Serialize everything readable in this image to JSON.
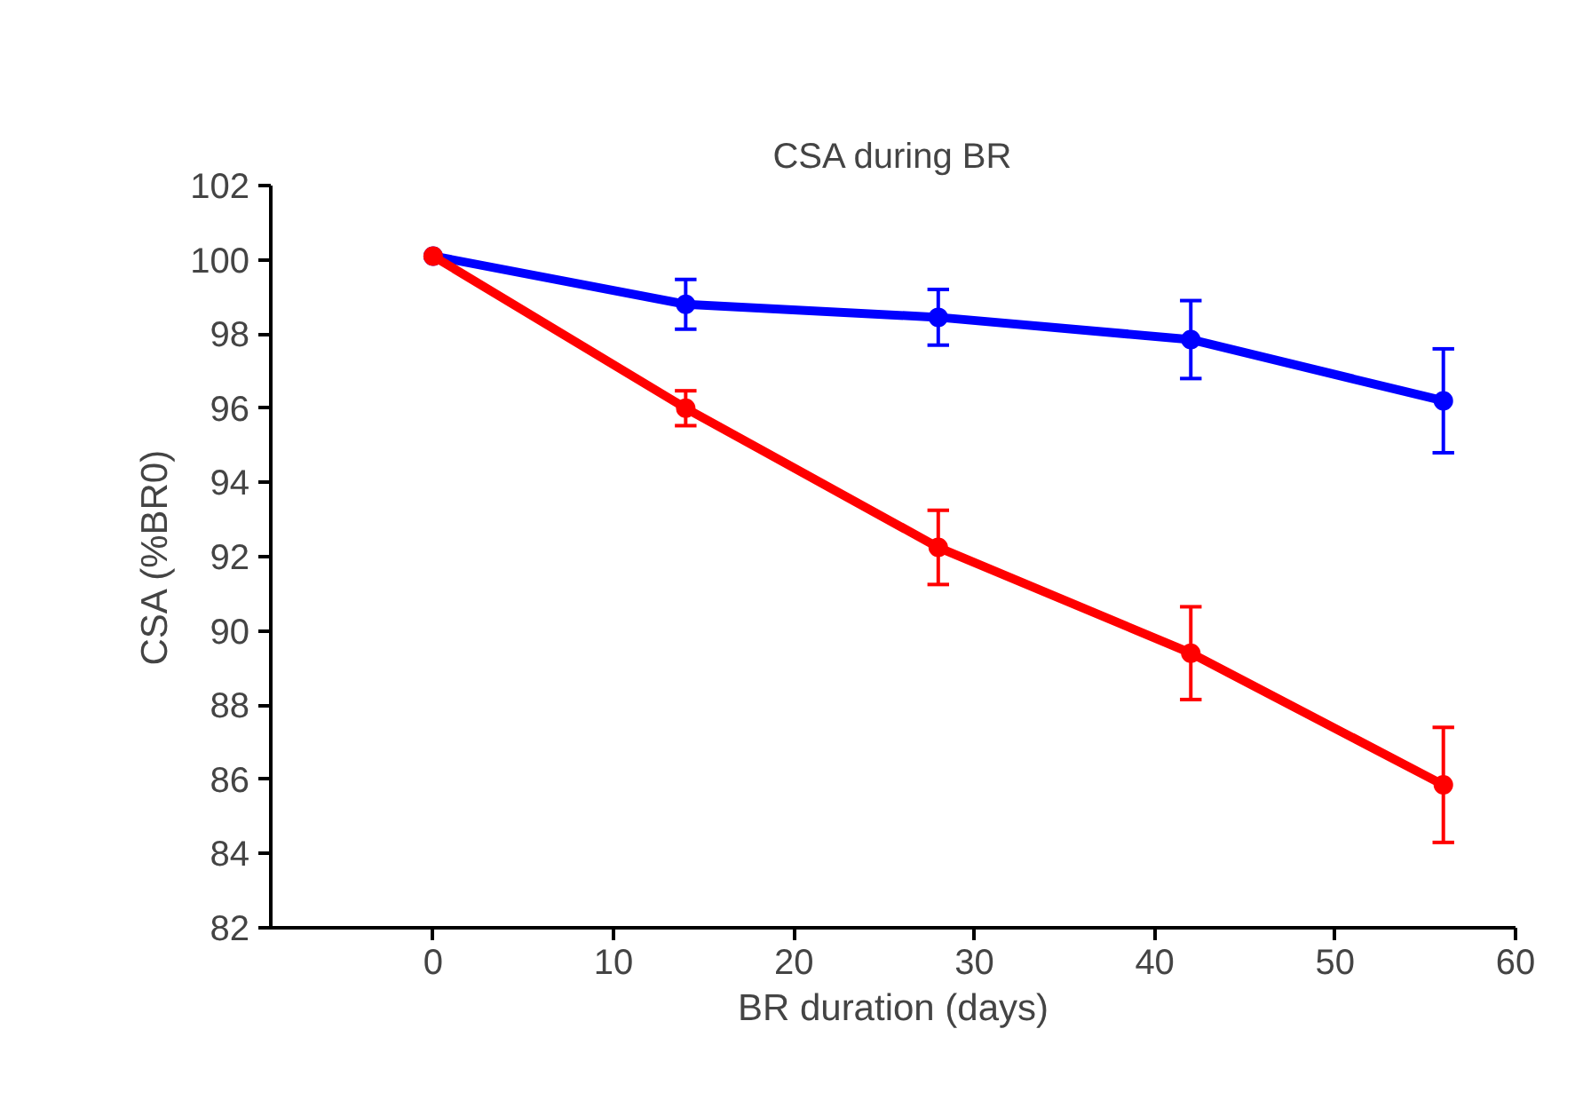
{
  "chart_data": {
    "type": "line",
    "title": "CSA during BR",
    "xlabel": "BR duration (days)",
    "ylabel": "CSA (%BR0)",
    "x": [
      0,
      14,
      28,
      42,
      56
    ],
    "xlim": [
      -9,
      60
    ],
    "xticks": [
      0,
      10,
      20,
      30,
      40,
      50,
      60
    ],
    "ylim": [
      82,
      102
    ],
    "yticks": [
      82,
      84,
      86,
      88,
      90,
      92,
      94,
      96,
      98,
      100,
      102
    ],
    "grid": false,
    "marker": "circle",
    "line_style": "solid",
    "series": [
      {
        "color": "#0000ff",
        "values": [
          100.1,
          98.8,
          98.45,
          97.85,
          96.2
        ],
        "errors": [
          null,
          0.67,
          0.75,
          1.05,
          1.4
        ]
      },
      {
        "color": "#ff0000",
        "values": [
          100.1,
          96.0,
          92.25,
          89.4,
          85.85
        ],
        "errors": [
          null,
          0.47,
          1.0,
          1.25,
          1.55
        ]
      }
    ]
  }
}
